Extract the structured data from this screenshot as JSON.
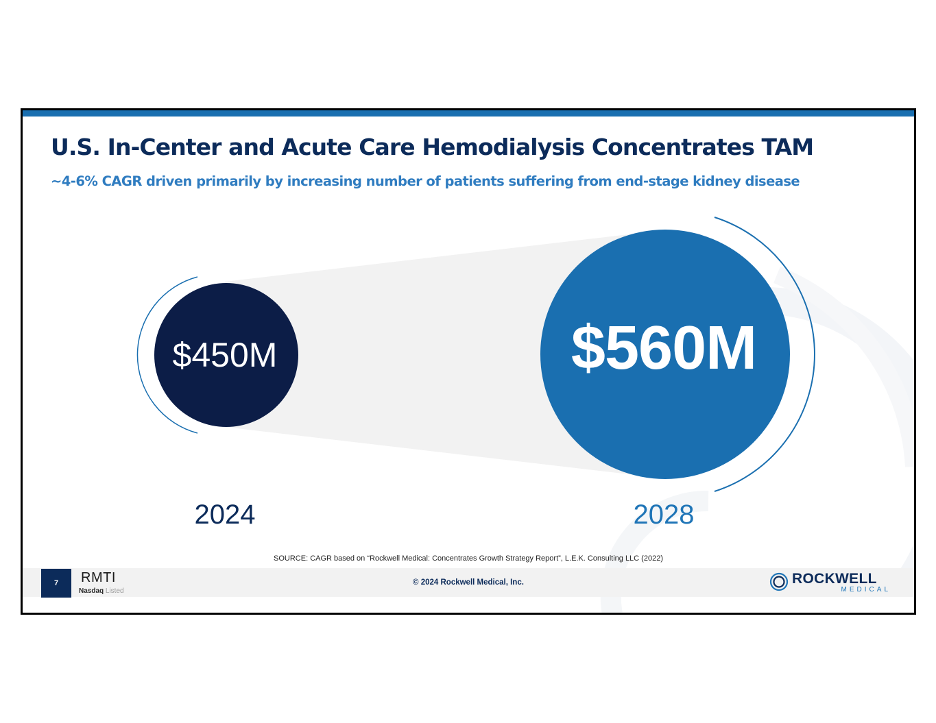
{
  "slide": {
    "title": "U.S. In-Center and Acute Care Hemodialysis Concentrates TAM",
    "subtitle": "~4-6% CAGR driven primarily by increasing number of patients suffering from end-stage kidney disease",
    "source": "SOURCE: CAGR based on “Rockwell Medical: Concentrates Growth Strategy Report”, L.E.K. Consulting LLC (2022)"
  },
  "tam": [
    {
      "year": "2024",
      "value_label": "$450M",
      "value_musd": 450,
      "color": "#0c1d47"
    },
    {
      "year": "2028",
      "value_label": "$560M",
      "value_musd": 560,
      "color": "#1a6fb0"
    }
  ],
  "footer": {
    "page_number": "7",
    "ticker": "RMTI",
    "listing_bold": "Nasdaq",
    "listing_text": " Listed",
    "copyright": "© 2024 Rockwell Medical, Inc.",
    "logo_word": "ROCKWELL",
    "logo_sub": "MEDICAL"
  },
  "colors": {
    "title": "#0c2b5a",
    "subtitle": "#2f7cc0",
    "accent_bar": "#1a6fb0",
    "footer_bg": "#f2f2f2"
  }
}
